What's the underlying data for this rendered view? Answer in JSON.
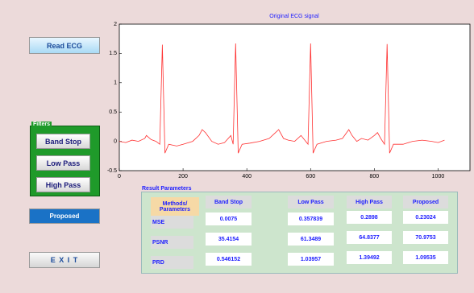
{
  "buttons": {
    "read": "Read ECG",
    "proposed": "Proposed",
    "exit": "E X I T"
  },
  "filters": {
    "title": "Filters",
    "buttons": [
      "Band Stop",
      "Low Pass",
      "High Pass"
    ]
  },
  "results": {
    "title": "Result Parameters",
    "header": [
      "Methods/ Parameters",
      "Band Stop",
      "Low Pass",
      "High Pass",
      "Proposed"
    ],
    "rows": [
      [
        "MSE",
        "0.0075",
        "0.357839",
        "0.2898",
        "0.23024"
      ],
      [
        "PSNR",
        "35.4154",
        "61.3489",
        "64.8377",
        "70.9753"
      ],
      [
        "PRD",
        "0.546152",
        "1.03957",
        "1.39492",
        "1.09535"
      ]
    ]
  },
  "chart_data": {
    "type": "line",
    "title": "Original ECG signal",
    "color": "#ff3030",
    "xlim": [
      0,
      1100
    ],
    "xticks": [
      0,
      200,
      400,
      600,
      800,
      1000
    ],
    "ylim": [
      -0.5,
      2
    ],
    "yticks": [
      -0.5,
      0,
      0.5,
      1,
      1.5,
      2
    ],
    "x": [
      0,
      20,
      40,
      60,
      80,
      85,
      100,
      115,
      127,
      135,
      143,
      155,
      180,
      200,
      230,
      250,
      260,
      270,
      290,
      310,
      330,
      350,
      357,
      365,
      373,
      385,
      410,
      440,
      470,
      490,
      500,
      515,
      530,
      550,
      570,
      585,
      592,
      600,
      608,
      620,
      650,
      680,
      700,
      720,
      730,
      745,
      760,
      780,
      800,
      810,
      820,
      832,
      840,
      848,
      860,
      890,
      920,
      950,
      980,
      1000,
      1020
    ],
    "values": [
      0,
      -0.02,
      0.02,
      0,
      0.05,
      0.1,
      0.03,
      0,
      -0.05,
      1.65,
      -0.2,
      -0.05,
      -0.08,
      -0.05,
      0,
      0.1,
      0.2,
      0.15,
      0,
      -0.05,
      -0.02,
      0.1,
      -0.05,
      1.67,
      -0.2,
      -0.05,
      -0.03,
      0,
      0.05,
      0.15,
      0.2,
      0.05,
      0.02,
      0,
      0.1,
      0,
      -0.05,
      1.67,
      -0.2,
      -0.05,
      0,
      0.02,
      0.05,
      0.2,
      0.1,
      0,
      0.05,
      0.02,
      0.1,
      0.15,
      0.05,
      -0.05,
      1.66,
      -0.2,
      -0.05,
      -0.05,
      0,
      0.02,
      0,
      -0.02,
      0.02
    ]
  }
}
